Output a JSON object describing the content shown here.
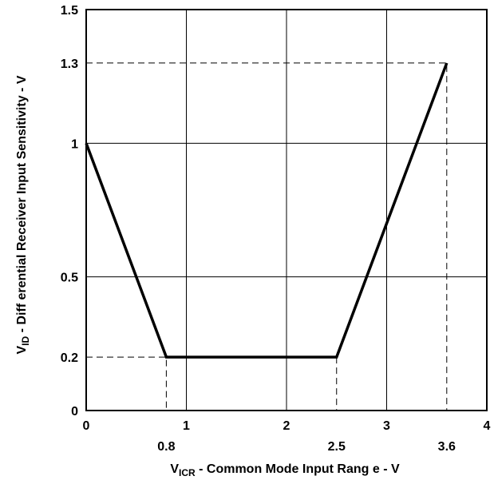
{
  "chart_data": {
    "type": "line",
    "title": "",
    "x_axis": {
      "label_main": "V",
      "label_sub": "ICR",
      "label_rest": " - Common Mode Input Rang e -  V",
      "lim": [
        0,
        4
      ],
      "ticks": [
        0,
        1,
        2,
        3,
        4
      ],
      "tick_labels": [
        "0",
        "1",
        "2",
        "3",
        "4"
      ],
      "extra_ticks": [
        0.8,
        2.5,
        3.6
      ],
      "extra_tick_labels": [
        "0.8",
        "2.5",
        "3.6"
      ]
    },
    "y_axis": {
      "label_main": "V",
      "label_sub": "ID",
      "label_rest": "   - Diff erential Receiver Input Sensitivity -  V",
      "lim": [
        0,
        1.5
      ],
      "ticks": [
        0,
        0.5,
        1,
        1.5
      ],
      "tick_labels": [
        "0",
        "0.5",
        "1",
        "1.5"
      ],
      "extra_ticks": [
        0.2,
        1.3
      ],
      "extra_tick_labels": [
        "0.2",
        "1.3"
      ]
    },
    "grid": true,
    "series": [
      {
        "x": [
          0,
          0.8,
          2.5,
          3.6
        ],
        "y": [
          1,
          0.2,
          0.2,
          1.3
        ]
      }
    ],
    "reference_lines": [
      {
        "points": [
          [
            0,
            0.2
          ],
          [
            0.8,
            0.2
          ],
          [
            0.8,
            0
          ]
        ]
      },
      {
        "points": [
          [
            2.5,
            0.2
          ],
          [
            2.5,
            0
          ]
        ]
      },
      {
        "points": [
          [
            0,
            1.3
          ],
          [
            3.6,
            1.3
          ],
          [
            3.6,
            0
          ]
        ]
      }
    ]
  }
}
